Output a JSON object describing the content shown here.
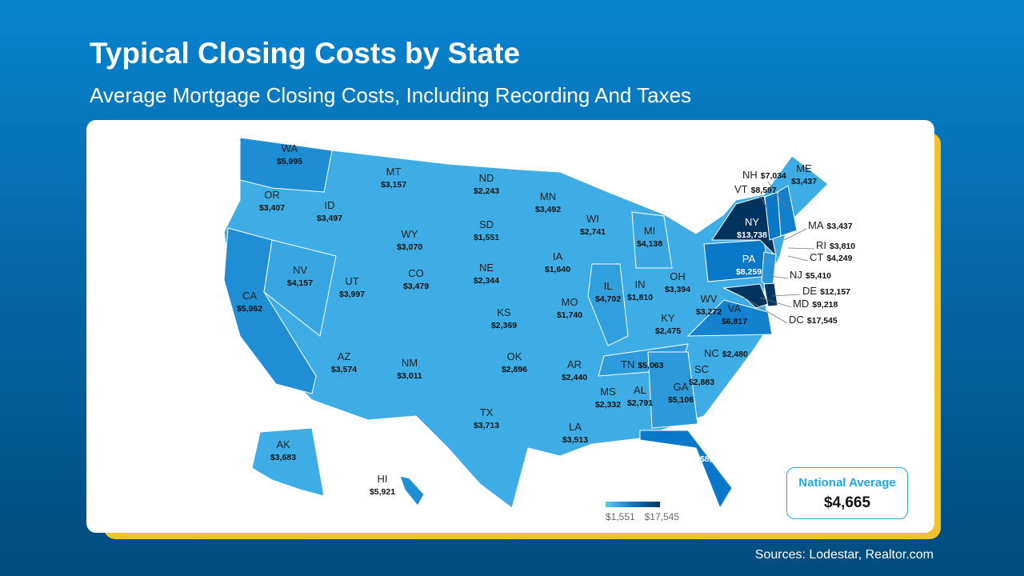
{
  "header": {
    "title": "Typical Closing Costs by State",
    "subtitle": "Average Mortgage Closing Costs, Including Recording And Taxes"
  },
  "colors": {
    "low": "#5bcaf5",
    "high": "#00335e",
    "accent": "#1ea7ea",
    "card_shadow": "#f2c12e"
  },
  "map_data": {
    "type": "choropleth",
    "states": [
      {
        "abbr": "WA",
        "value": "$5,995"
      },
      {
        "abbr": "OR",
        "value": "$3,407"
      },
      {
        "abbr": "CA",
        "value": "$5,962"
      },
      {
        "abbr": "NV",
        "value": "$4,157"
      },
      {
        "abbr": "ID",
        "value": "$3,497"
      },
      {
        "abbr": "MT",
        "value": "$3,157"
      },
      {
        "abbr": "WY",
        "value": "$3,070"
      },
      {
        "abbr": "UT",
        "value": "$3,997"
      },
      {
        "abbr": "CO",
        "value": "$3,479"
      },
      {
        "abbr": "AZ",
        "value": "$3,574"
      },
      {
        "abbr": "NM",
        "value": "$3,011"
      },
      {
        "abbr": "ND",
        "value": "$2,243"
      },
      {
        "abbr": "SD",
        "value": "$1,551"
      },
      {
        "abbr": "NE",
        "value": "$2,344"
      },
      {
        "abbr": "KS",
        "value": "$2,369"
      },
      {
        "abbr": "OK",
        "value": "$2,896"
      },
      {
        "abbr": "TX",
        "value": "$3,713"
      },
      {
        "abbr": "MN",
        "value": "$3,492"
      },
      {
        "abbr": "IA",
        "value": "$1,640"
      },
      {
        "abbr": "MO",
        "value": "$1,740"
      },
      {
        "abbr": "AR",
        "value": "$2,440"
      },
      {
        "abbr": "LA",
        "value": "$3,513"
      },
      {
        "abbr": "WI",
        "value": "$2,741"
      },
      {
        "abbr": "IL",
        "value": "$4,702"
      },
      {
        "abbr": "MI",
        "value": "$4,138"
      },
      {
        "abbr": "IN",
        "value": "$1,810"
      },
      {
        "abbr": "OH",
        "value": "$3,394"
      },
      {
        "abbr": "KY",
        "value": "$2,475"
      },
      {
        "abbr": "TN",
        "value": "$5,063"
      },
      {
        "abbr": "MS",
        "value": "$2,332"
      },
      {
        "abbr": "AL",
        "value": "$2,791"
      },
      {
        "abbr": "GA",
        "value": "$5,106"
      },
      {
        "abbr": "FL",
        "value": "$8,492"
      },
      {
        "abbr": "SC",
        "value": "$2,883"
      },
      {
        "abbr": "NC",
        "value": "$2,480"
      },
      {
        "abbr": "WV",
        "value": "$3,272"
      },
      {
        "abbr": "VA",
        "value": "$6,817"
      },
      {
        "abbr": "PA",
        "value": "$8,259"
      },
      {
        "abbr": "NY",
        "value": "$13,738"
      },
      {
        "abbr": "ME",
        "value": "$3,437"
      },
      {
        "abbr": "NH",
        "value": "$7,034"
      },
      {
        "abbr": "VT",
        "value": "$8,597"
      },
      {
        "abbr": "MA",
        "value": "$3,437"
      },
      {
        "abbr": "RI",
        "value": "$3,810"
      },
      {
        "abbr": "CT",
        "value": "$4,249"
      },
      {
        "abbr": "NJ",
        "value": "$5,410"
      },
      {
        "abbr": "DE",
        "value": "$12,157"
      },
      {
        "abbr": "MD",
        "value": "$9,218"
      },
      {
        "abbr": "DC",
        "value": "$17,545"
      },
      {
        "abbr": "AK",
        "value": "$3,683"
      },
      {
        "abbr": "HI",
        "value": "$5,921"
      }
    ],
    "legend": {
      "min_label": "$1,551",
      "max_label": "$17,545",
      "min": 1551,
      "max": 17545
    }
  },
  "national_average": {
    "label": "National Average",
    "value": "$4,665"
  },
  "footer": {
    "sources": "Sources: Lodestar, Realtor.com"
  }
}
